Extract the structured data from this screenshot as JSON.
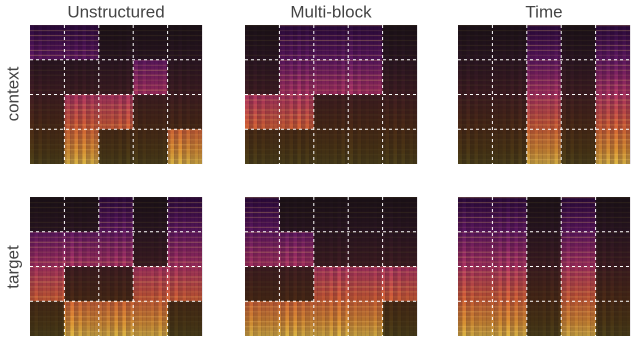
{
  "columns": [
    "Unstructured",
    "Multi-block",
    "Time"
  ],
  "rows": [
    "context",
    "target"
  ]
}
